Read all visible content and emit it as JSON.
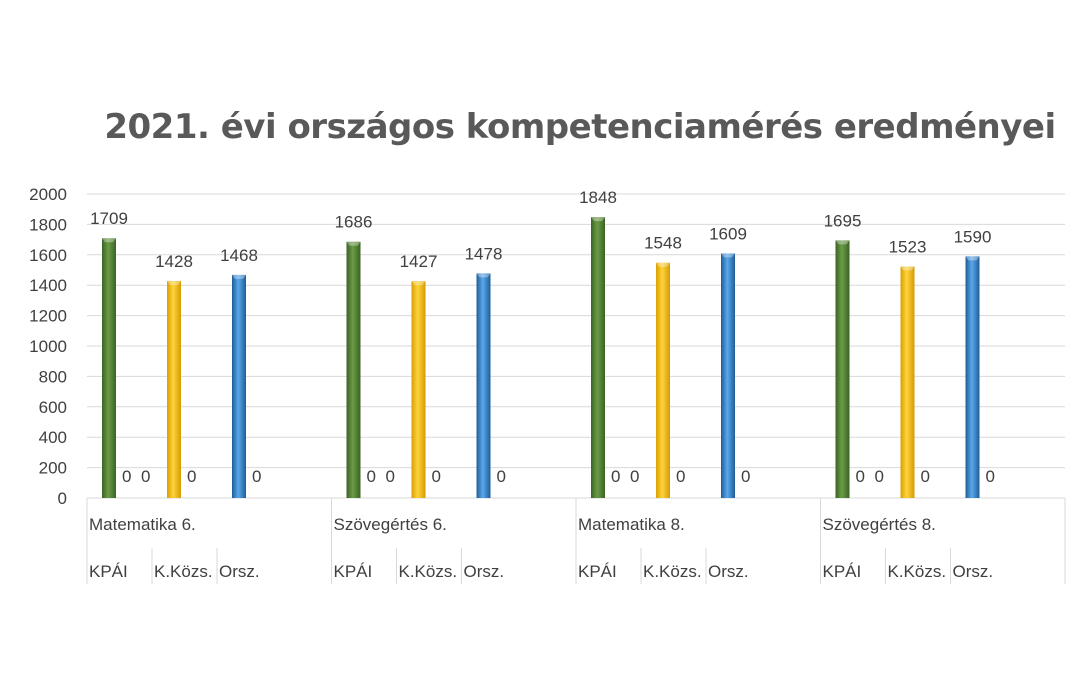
{
  "chart_data": {
    "type": "bar",
    "title": "2021. évi országos kompetenciamérés eredményei",
    "xlabel": "",
    "ylabel": "",
    "ylim": [
      0,
      2000
    ],
    "yticks": [
      0,
      200,
      400,
      600,
      800,
      1000,
      1200,
      1400,
      1600,
      1800,
      2000
    ],
    "grid": true,
    "legend": "none",
    "groups": [
      {
        "label": "Matematika 6.",
        "bars": [
          {
            "label": "KPÁI",
            "value": 1709,
            "zeros": [
              "0",
              "0"
            ]
          },
          {
            "label": "K.Közs.",
            "value": 1428,
            "zeros": [
              "0"
            ]
          },
          {
            "label": "Orsz.",
            "value": 1468,
            "zeros": [
              "0"
            ]
          }
        ]
      },
      {
        "label": "Szövegértés 6.",
        "bars": [
          {
            "label": "KPÁI",
            "value": 1686,
            "zeros": [
              "0",
              "0"
            ]
          },
          {
            "label": "K.Közs.",
            "value": 1427,
            "zeros": [
              "0"
            ]
          },
          {
            "label": "Orsz.",
            "value": 1478,
            "zeros": [
              "0"
            ]
          }
        ]
      },
      {
        "label": "Matematika 8.",
        "bars": [
          {
            "label": "KPÁI",
            "value": 1848,
            "zeros": [
              "0",
              "0"
            ]
          },
          {
            "label": "K.Közs.",
            "value": 1548,
            "zeros": [
              "0"
            ]
          },
          {
            "label": "Orsz.",
            "value": 1609,
            "zeros": [
              "0"
            ]
          }
        ]
      },
      {
        "label": "Szövegértés 8.",
        "bars": [
          {
            "label": "KPÁI",
            "value": 1695,
            "zeros": [
              "0",
              "0"
            ]
          },
          {
            "label": "K.Közs.",
            "value": 1523,
            "zeros": [
              "0"
            ]
          },
          {
            "label": "Orsz.",
            "value": 1590,
            "zeros": [
              "0"
            ]
          }
        ]
      }
    ],
    "colors": [
      "#548235",
      "#ffc000",
      "#2e75b6"
    ]
  }
}
